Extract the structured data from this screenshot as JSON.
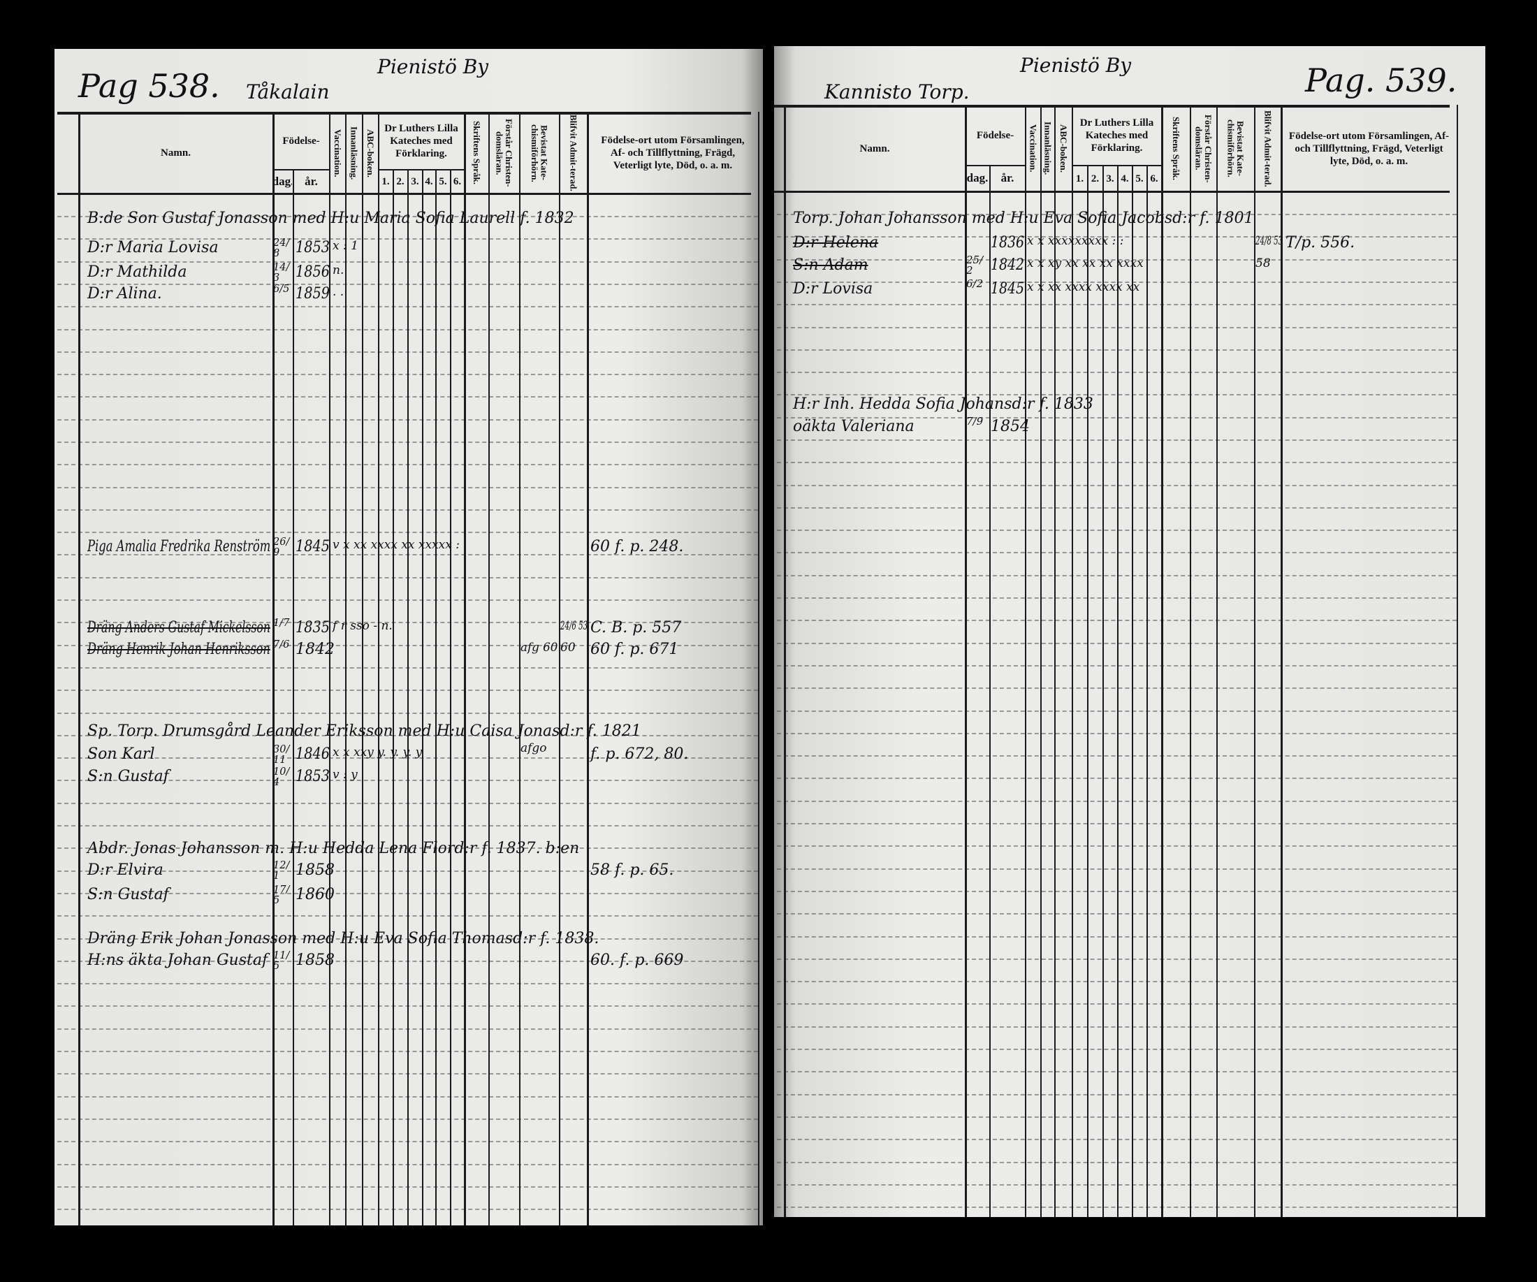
{
  "column_headers": {
    "namn": "Namn.",
    "fodelse": "Födelse-",
    "dag": "dag.",
    "ar": "år.",
    "vaccination": "Vaccination.",
    "innanlasning": "Innanläsning.",
    "abc_boken": "ABC-boken.",
    "luther": "Dr Luthers Lilla Kateches med Förklaring.",
    "luther_parts": [
      "1.",
      "2.",
      "3.",
      "4.",
      "5.",
      "6."
    ],
    "skriftens_sprak": "Skriftens Språk.",
    "forstar": "Förstår Christen-domsläran.",
    "bevistat": "Bevistat Kate-chismiförhörn.",
    "admitterad": "Blifvit Admit-terad.",
    "fodelseort": "Födelse-ort utom Församlingen, Af- och Tillflyttning, Frägd, Veterligt lyte, Död, o. a. m."
  },
  "left_page": {
    "page_number": "Pag 538.",
    "place": "Tåkalain",
    "village": "Pienistö By",
    "entries": [
      {
        "name": "B:de Son Gustaf Jonasson med H:u Maria Sofia Laurell f. 1832"
      },
      {
        "name": "D:r Maria Lovisa",
        "dag": "24/8",
        "ar": "1853",
        "marks": "x : 1"
      },
      {
        "name": "D:r Mathilda",
        "dag": "14/3",
        "ar": "1856",
        "marks": "n."
      },
      {
        "name": "D:r Alina.",
        "dag": "6/5",
        "ar": "1859",
        "marks": ". ."
      },
      {
        "name": "Piga Amalia Fredrika Renström",
        "dag": "26/9",
        "ar": "1845",
        "marks": "v x xx xxxx xx xxxxx :",
        "notes": "60 f. p. 248."
      },
      {
        "name": "Dräng Anders Gustaf Mickelsson",
        "dag": "1/7",
        "ar": "1835",
        "marks": "            f r sso - n.",
        "admit": "24/6 53",
        "notes": "C. B. p. 557",
        "struck": true
      },
      {
        "name": "Dräng Henrik Johan Henriksson",
        "dag": "7/6",
        "ar": "1842",
        "afg": "afg 60",
        "admit": "60",
        "notes": "60 f. p. 671",
        "struck": true
      },
      {
        "name": "Sp. Torp.   Drumsgård  Leander  Eriksson  med H:u  Caisa  Jonasd:r  f. 1821",
        "afg": "afgo"
      },
      {
        "name": "Son Karl",
        "dag": "30/11",
        "ar": "1846",
        "marks": "x x xxy y. y. y. y",
        "notes": "f. p. 672, 80."
      },
      {
        "name": "S:n Gustaf",
        "dag": "10/4",
        "ar": "1853",
        "marks": "v : y"
      },
      {
        "name": "Abdr. Jonas Johansson m. H:u Hedda Lena Flord:r f. 1837. b:en"
      },
      {
        "name": "D:r Elvira",
        "dag": "12/1",
        "ar": "1858",
        "notes": "58 f. p. 65."
      },
      {
        "name": "S:n Gustaf",
        "dag": "17/5",
        "ar": "1860"
      },
      {
        "name": "Dräng Erik Johan Jonasson med H:u Eva Sofia Thomasd:r f. 1838."
      },
      {
        "name": "H:ns äkta Johan Gustaf",
        "dag": "11/5",
        "ar": "1858",
        "notes": "60. f. p. 669"
      }
    ]
  },
  "right_page": {
    "page_number": "Pag. 539.",
    "place": "Kannisto Torp.",
    "village": "Pienistö By",
    "entries": [
      {
        "name": "Torp. Johan Johansson med H:u Eva Sofia Jacobsd:r f. 1801"
      },
      {
        "name": "D:r Helena",
        "ar": "1836",
        "marks": "x x xxxxxxxxx : :",
        "admit": "24/8 53",
        "notes": "T/p. 556.",
        "struck": true
      },
      {
        "name": "S:n Adam",
        "dag": "25/2",
        "ar": "1842",
        "marks": "x x xy xx xx xx xxxx",
        "admit": "58",
        "struck": true
      },
      {
        "name": "D:r Lovisa",
        "dag": "6/2",
        "ar": "1845",
        "marks": "x x xx xxxx xxxx xx"
      },
      {
        "name": "H:r Inh. Hedda Sofia Johansd:r f. 1833"
      },
      {
        "name": "oäkta Valeriana",
        "dag": "7/9",
        "ar": "1854"
      }
    ]
  }
}
